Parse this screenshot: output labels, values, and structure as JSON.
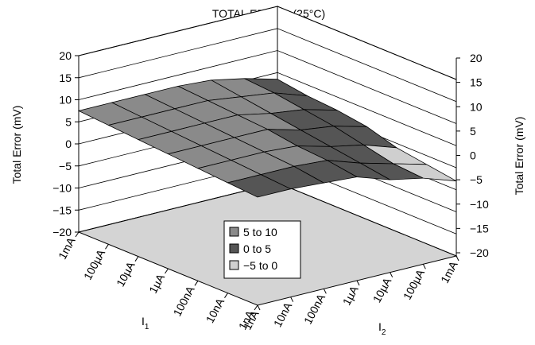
{
  "chart_data": {
    "type": "surface3d",
    "title": "TOTAL ERROR (25°C)",
    "zlabel_left": "Total Error (mV)",
    "zlabel_right": "Total Error (mV)",
    "z_ticks": [
      "20",
      "15",
      "10",
      "5",
      "0",
      "−5",
      "−10",
      "−15",
      "−20"
    ],
    "z_tick_values": [
      20,
      15,
      10,
      5,
      0,
      -5,
      -10,
      -15,
      -20
    ],
    "zlim": [
      -20,
      20
    ],
    "x_axis": {
      "label": "I",
      "label_sub": "1",
      "ticks": [
        "1mA",
        "100µA",
        "10µA",
        "1µA",
        "100nA",
        "10nA",
        "1nA"
      ]
    },
    "y_axis": {
      "label": "I",
      "label_sub": "2",
      "ticks": [
        "1nA",
        "10nA",
        "100nA",
        "1µA",
        "10µA",
        "100µA",
        "1mA"
      ]
    },
    "legend": {
      "position": "floor-center",
      "items": [
        {
          "label": "5 to 10",
          "color": "#8a8a8a"
        },
        {
          "label": "0 to 5",
          "color": "#555555"
        },
        {
          "label": "−5 to 0",
          "color": "#cfcfcf"
        }
      ]
    },
    "surface_z": [
      [
        7.5,
        7.5,
        7.5,
        7.5,
        7.0,
        5.5,
        3.5
      ],
      [
        7.0,
        7.0,
        7.0,
        7.0,
        6.0,
        5.0,
        2.5
      ],
      [
        6.5,
        6.5,
        6.5,
        6.5,
        5.0,
        4.0,
        2.0
      ],
      [
        6.0,
        6.0,
        6.0,
        6.0,
        4.0,
        3.0,
        1.0
      ],
      [
        5.5,
        5.5,
        5.5,
        5.0,
        3.0,
        1.5,
        -1.0
      ],
      [
        5.0,
        5.0,
        5.0,
        4.5,
        2.0,
        0.0,
        -2.0
      ],
      [
        4.5,
        4.5,
        4.0,
        3.5,
        1.0,
        -0.5,
        -3.0
      ]
    ],
    "colors": {
      "floor": "#d4d4d4",
      "surface_high": "#8a8a8a",
      "surface_mid": "#555555",
      "surface_low": "#cfcfcf",
      "lines": "#000000"
    }
  }
}
